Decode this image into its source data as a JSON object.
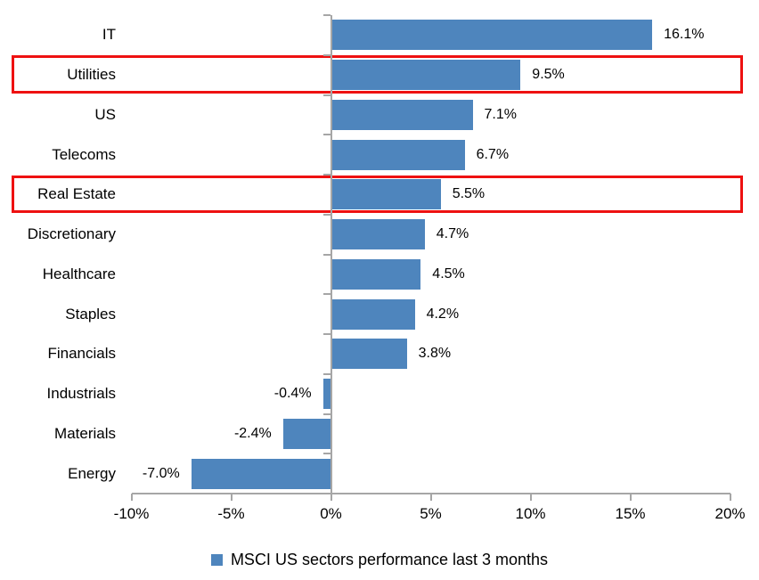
{
  "chart_data": {
    "type": "bar",
    "orientation": "horizontal",
    "title": "",
    "categories": [
      "IT",
      "Utilities",
      "US",
      "Telecoms",
      "Real Estate",
      "Discretionary",
      "Healthcare",
      "Staples",
      "Financials",
      "Industrials",
      "Materials",
      "Energy"
    ],
    "series": [
      {
        "name": "MSCI US sectors performance last 3 months",
        "values": [
          16.1,
          9.5,
          7.1,
          6.7,
          5.5,
          4.7,
          4.5,
          4.2,
          3.8,
          -0.4,
          -2.4,
          -7.0
        ],
        "value_labels": [
          "16.1%",
          "9.5%",
          "7.1%",
          "6.7%",
          "5.5%",
          "4.7%",
          "4.5%",
          "4.2%",
          "3.8%",
          "-0.4%",
          "-2.4%",
          "-7.0%"
        ]
      }
    ],
    "highlighted_categories": [
      "Utilities",
      "Real Estate"
    ],
    "x_axis": {
      "range": [
        -10,
        20
      ],
      "tick_values": [
        -10,
        -5,
        0,
        5,
        10,
        15,
        20
      ],
      "tick_labels": [
        "-10%",
        "-5%",
        "0%",
        "5%",
        "10%",
        "15%",
        "20%"
      ]
    },
    "legend": {
      "label": "MSCI US sectors performance last 3 months",
      "position": "bottom"
    },
    "grid": false,
    "colors": {
      "bar": "#4e85bd",
      "highlight_box": "#ee1111",
      "axis": "#a6a6a6",
      "text": "#000000",
      "background": "#ffffff"
    }
  }
}
